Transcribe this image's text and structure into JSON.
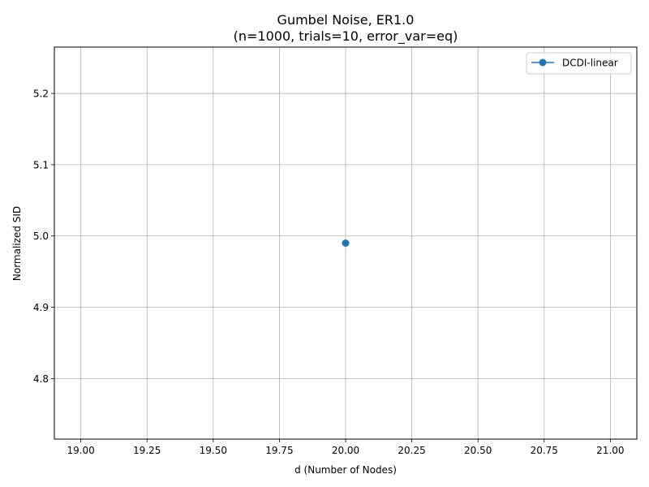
{
  "chart_data": {
    "type": "line",
    "title": "Gumbel Noise, ER1.0",
    "subtitle": "(n=1000, trials=10, error_var=eq)",
    "xlabel": "d (Number of Nodes)",
    "ylabel": "Normalized SID",
    "xlim": [
      18.9,
      21.1
    ],
    "ylim": [
      4.715,
      5.265
    ],
    "xticks": [
      19.0,
      19.25,
      19.5,
      19.75,
      20.0,
      20.25,
      20.5,
      20.75,
      21.0
    ],
    "xtick_labels": [
      "19.00",
      "19.25",
      "19.50",
      "19.75",
      "20.00",
      "20.25",
      "20.50",
      "20.75",
      "21.00"
    ],
    "yticks": [
      4.8,
      4.9,
      5.0,
      5.1,
      5.2
    ],
    "ytick_labels": [
      "4.8",
      "4.9",
      "5.0",
      "5.1",
      "5.2"
    ],
    "grid": true,
    "legend_position": "top-right",
    "series": [
      {
        "name": "DCDI-linear",
        "color": "#1f77b4",
        "marker": "circle",
        "x": [
          20
        ],
        "y": [
          4.99
        ]
      }
    ]
  }
}
